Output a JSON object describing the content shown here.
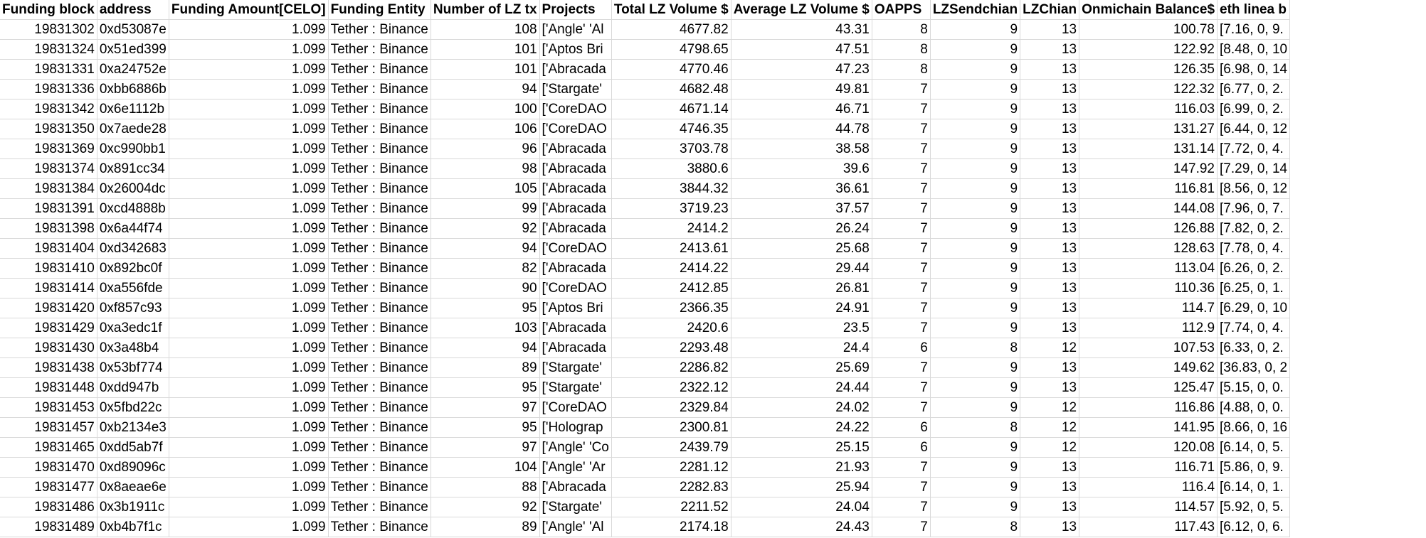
{
  "headers": [
    "Funding block",
    "address",
    "Funding Amount[CELO]",
    "Funding Entity",
    "Number of LZ tx",
    "Projects",
    "Total LZ Volume $",
    "Average LZ Volume $",
    "OAPPS",
    "LZSendchian",
    "LZChian",
    "Onmichain Balance$",
    "eth linea b"
  ],
  "rows": [
    [
      "19831302",
      "0xd53087e",
      "1.099",
      "Tether : Binance",
      "108",
      "['Angle' 'Al",
      "4677.82",
      "43.31",
      "8",
      "9",
      "13",
      "100.78",
      "[7.16, 0, 9."
    ],
    [
      "19831324",
      "0x51ed399",
      "1.099",
      "Tether : Binance",
      "101",
      "['Aptos Bri",
      "4798.65",
      "47.51",
      "8",
      "9",
      "13",
      "122.92",
      "[8.48, 0, 10"
    ],
    [
      "19831331",
      "0xa24752e",
      "1.099",
      "Tether : Binance",
      "101",
      "['Abracada",
      "4770.46",
      "47.23",
      "8",
      "9",
      "13",
      "126.35",
      "[6.98, 0, 14"
    ],
    [
      "19831336",
      "0xbb6886b",
      "1.099",
      "Tether : Binance",
      "94",
      "['Stargate'",
      "4682.48",
      "49.81",
      "7",
      "9",
      "13",
      "122.32",
      "[6.77, 0, 2."
    ],
    [
      "19831342",
      "0x6e1112b",
      "1.099",
      "Tether : Binance",
      "100",
      "['CoreDAO",
      "4671.14",
      "46.71",
      "7",
      "9",
      "13",
      "116.03",
      "[6.99, 0, 2."
    ],
    [
      "19831350",
      "0x7aede28",
      "1.099",
      "Tether : Binance",
      "106",
      "['CoreDAO",
      "4746.35",
      "44.78",
      "7",
      "9",
      "13",
      "131.27",
      "[6.44, 0, 12"
    ],
    [
      "19831369",
      "0xc990bb1",
      "1.099",
      "Tether : Binance",
      "96",
      "['Abracada",
      "3703.78",
      "38.58",
      "7",
      "9",
      "13",
      "131.14",
      "[7.72, 0, 4."
    ],
    [
      "19831374",
      "0x891cc34",
      "1.099",
      "Tether : Binance",
      "98",
      "['Abracada",
      "3880.6",
      "39.6",
      "7",
      "9",
      "13",
      "147.92",
      "[7.29, 0, 14"
    ],
    [
      "19831384",
      "0x26004dc",
      "1.099",
      "Tether : Binance",
      "105",
      "['Abracada",
      "3844.32",
      "36.61",
      "7",
      "9",
      "13",
      "116.81",
      "[8.56, 0, 12"
    ],
    [
      "19831391",
      "0xcd4888b",
      "1.099",
      "Tether : Binance",
      "99",
      "['Abracada",
      "3719.23",
      "37.57",
      "7",
      "9",
      "13",
      "144.08",
      "[7.96, 0, 7."
    ],
    [
      "19831398",
      "0x6a44f74",
      "1.099",
      "Tether : Binance",
      "92",
      "['Abracada",
      "2414.2",
      "26.24",
      "7",
      "9",
      "13",
      "126.88",
      "[7.82, 0, 2."
    ],
    [
      "19831404",
      "0xd342683",
      "1.099",
      "Tether : Binance",
      "94",
      "['CoreDAO",
      "2413.61",
      "25.68",
      "7",
      "9",
      "13",
      "128.63",
      "[7.78, 0, 4."
    ],
    [
      "19831410",
      "0x892bc0f",
      "1.099",
      "Tether : Binance",
      "82",
      "['Abracada",
      "2414.22",
      "29.44",
      "7",
      "9",
      "13",
      "113.04",
      "[6.26, 0, 2."
    ],
    [
      "19831414",
      "0xa556fde",
      "1.099",
      "Tether : Binance",
      "90",
      "['CoreDAO",
      "2412.85",
      "26.81",
      "7",
      "9",
      "13",
      "110.36",
      "[6.25, 0, 1."
    ],
    [
      "19831420",
      "0xf857c93",
      "1.099",
      "Tether : Binance",
      "95",
      "['Aptos Bri",
      "2366.35",
      "24.91",
      "7",
      "9",
      "13",
      "114.7",
      "[6.29, 0, 10"
    ],
    [
      "19831429",
      "0xa3edc1f",
      "1.099",
      "Tether : Binance",
      "103",
      "['Abracada",
      "2420.6",
      "23.5",
      "7",
      "9",
      "13",
      "112.9",
      "[7.74, 0, 4."
    ],
    [
      "19831430",
      "0x3a48b4",
      "1.099",
      "Tether : Binance",
      "94",
      "['Abracada",
      "2293.48",
      "24.4",
      "6",
      "8",
      "12",
      "107.53",
      "[6.33, 0, 2."
    ],
    [
      "19831438",
      "0x53bf774",
      "1.099",
      "Tether : Binance",
      "89",
      "['Stargate'",
      "2286.82",
      "25.69",
      "7",
      "9",
      "13",
      "149.62",
      "[36.83, 0, 2"
    ],
    [
      "19831448",
      "0xdd947b",
      "1.099",
      "Tether : Binance",
      "95",
      "['Stargate'",
      "2322.12",
      "24.44",
      "7",
      "9",
      "13",
      "125.47",
      "[5.15, 0, 0."
    ],
    [
      "19831453",
      "0x5fbd22c",
      "1.099",
      "Tether : Binance",
      "97",
      "['CoreDAO",
      "2329.84",
      "24.02",
      "7",
      "9",
      "12",
      "116.86",
      "[4.88, 0, 0."
    ],
    [
      "19831457",
      "0xb2134e3",
      "1.099",
      "Tether : Binance",
      "95",
      "['Holograp",
      "2300.81",
      "24.22",
      "6",
      "8",
      "12",
      "141.95",
      "[8.66, 0, 16"
    ],
    [
      "19831465",
      "0xdd5ab7f",
      "1.099",
      "Tether : Binance",
      "97",
      "['Angle' 'Co",
      "2439.79",
      "25.15",
      "6",
      "9",
      "12",
      "120.08",
      "[6.14, 0, 5."
    ],
    [
      "19831470",
      "0xd89096c",
      "1.099",
      "Tether : Binance",
      "104",
      "['Angle' 'Ar",
      "2281.12",
      "21.93",
      "7",
      "9",
      "13",
      "116.71",
      "[5.86, 0, 9."
    ],
    [
      "19831477",
      "0x8aeae6e",
      "1.099",
      "Tether : Binance",
      "88",
      "['Abracada",
      "2282.83",
      "25.94",
      "7",
      "9",
      "13",
      "116.4",
      "[6.14, 0, 1."
    ],
    [
      "19831486",
      "0x3b1911c",
      "1.099",
      "Tether : Binance",
      "92",
      "['Stargate'",
      "2211.52",
      "24.04",
      "7",
      "9",
      "13",
      "114.57",
      "[5.92, 0, 5."
    ],
    [
      "19831489",
      "0xb4b7f1c",
      "1.099",
      "Tether : Binance",
      "89",
      "['Angle' 'Al",
      "2174.18",
      "24.43",
      "7",
      "8",
      "13",
      "117.43",
      "[6.12, 0, 6."
    ]
  ]
}
